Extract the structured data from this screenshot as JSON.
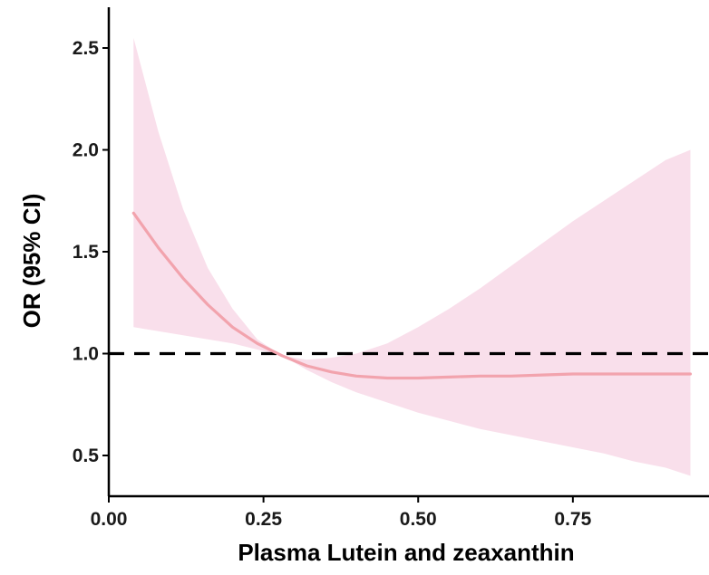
{
  "chart_data": {
    "type": "line",
    "xlabel": "Plasma Lutein and zeaxanthin",
    "ylabel": "OR (95% CI)",
    "xlim": [
      0.0,
      0.97
    ],
    "ylim": [
      0.3,
      2.7
    ],
    "x_ticks": [
      0.0,
      0.25,
      0.5,
      0.75
    ],
    "x_tick_labels": [
      "0.00",
      "0.25",
      "0.50",
      "0.75"
    ],
    "y_ticks": [
      0.5,
      1.0,
      1.5,
      2.0,
      2.5
    ],
    "y_tick_labels": [
      "0.5",
      "1.0",
      "1.5",
      "2.0",
      "2.5"
    ],
    "reference_line": {
      "y": 1.0,
      "style": "dashed",
      "color": "#000000"
    },
    "line_color": "#f2a3ad",
    "band_color": "#f9dfeb",
    "grid": false,
    "series": [
      {
        "x": [
          0.04,
          0.08,
          0.12,
          0.16,
          0.2,
          0.24,
          0.28,
          0.32,
          0.36,
          0.4,
          0.45,
          0.5,
          0.55,
          0.6,
          0.65,
          0.7,
          0.75,
          0.8,
          0.85,
          0.9,
          0.94
        ],
        "y": [
          1.69,
          1.52,
          1.37,
          1.24,
          1.13,
          1.05,
          0.99,
          0.94,
          0.91,
          0.89,
          0.88,
          0.88,
          0.885,
          0.89,
          0.89,
          0.895,
          0.9,
          0.9,
          0.9,
          0.9,
          0.9
        ],
        "lower": [
          1.13,
          1.11,
          1.09,
          1.07,
          1.05,
          1.02,
          0.99,
          0.92,
          0.86,
          0.81,
          0.76,
          0.71,
          0.67,
          0.63,
          0.6,
          0.57,
          0.54,
          0.51,
          0.47,
          0.44,
          0.4
        ],
        "upper": [
          2.55,
          2.09,
          1.71,
          1.42,
          1.22,
          1.07,
          0.99,
          0.97,
          0.98,
          1.0,
          1.05,
          1.13,
          1.22,
          1.32,
          1.43,
          1.54,
          1.65,
          1.75,
          1.85,
          1.95,
          2.0
        ]
      }
    ]
  }
}
